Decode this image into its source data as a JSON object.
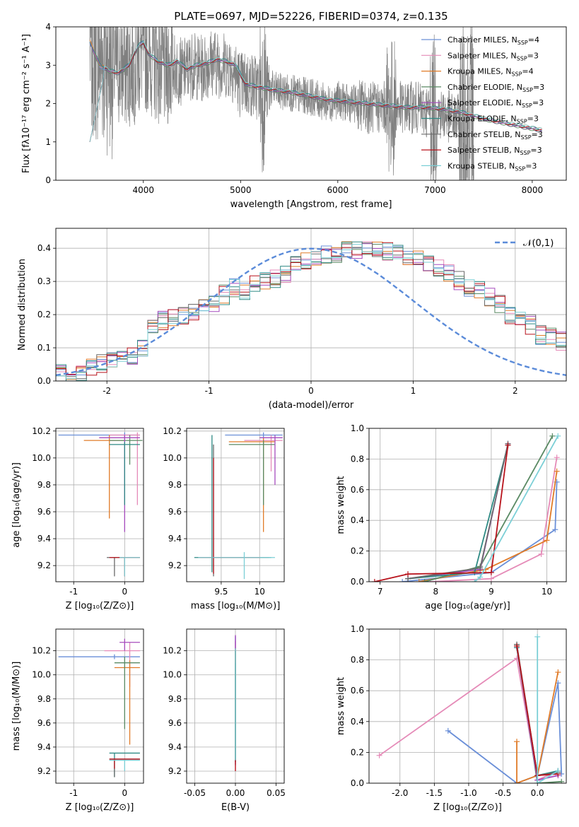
{
  "title": "PLATE=0697, MJD=52226, FIBERID=0374, z=0.135",
  "colors": [
    "#6a8fd8",
    "#e58bb8",
    "#e07b28",
    "#5a8a64",
    "#a64bbd",
    "#2e8a84",
    "#6a6a6a",
    "#b8121b",
    "#7bcfd6"
  ],
  "legend": [
    {
      "label": "Chabrier MILES, N",
      "sub": "SSP",
      "val": "=4"
    },
    {
      "label": "Salpeter MILES, N",
      "sub": "SSP",
      "val": "=3"
    },
    {
      "label": "Kroupa MILES, N",
      "sub": "SSP",
      "val": "=4"
    },
    {
      "label": "Chabrier ELODIE, N",
      "sub": "SSP",
      "val": "=3"
    },
    {
      "label": "Salpeter ELODIE, N",
      "sub": "SSP",
      "val": "=3"
    },
    {
      "label": "Kroupa ELODIE, N",
      "sub": "SSP",
      "val": "=3"
    },
    {
      "label": "Chabrier STELIB, N",
      "sub": "SSP",
      "val": "=3"
    },
    {
      "label": "Salpeter STELIB, N",
      "sub": "SSP",
      "val": "=3"
    },
    {
      "label": "Kroupa STELIB, N",
      "sub": "SSP",
      "val": "=3"
    }
  ],
  "chart_data": [
    {
      "id": "spectrum",
      "type": "line",
      "xlabel": "wavelength [Angstrom, rest frame]",
      "ylabel": "Flux [fλ10⁻¹⁷ erg cm⁻² s⁻¹ A⁻¹]",
      "xlim": [
        3100,
        8350
      ],
      "ylim": [
        0,
        4
      ],
      "xticks": [
        4000,
        5000,
        6000,
        7000,
        8000
      ],
      "yticks": [
        0,
        1,
        2,
        3,
        4
      ],
      "grid": false,
      "data_series": {
        "name": "",
        "x": [
          3450,
          3600,
          3700,
          3800,
          3900,
          4000,
          4100,
          4200,
          4300,
          4400,
          4500,
          4600,
          4700,
          4800,
          4900,
          5000,
          5100,
          5200,
          5300,
          5400,
          5500,
          5600,
          5700,
          5800,
          5900,
          6000,
          6100,
          6200,
          6300,
          6400,
          6500,
          6600,
          6700,
          6800,
          6900,
          7000,
          7100,
          7200,
          7300,
          7400
        ],
        "y": [
          3.6,
          3.2,
          3.0,
          2.9,
          3.0,
          3.4,
          3.2,
          2.9,
          3.0,
          2.8,
          3.0,
          2.9,
          3.1,
          3.0,
          3.0,
          2.5,
          2.5,
          2.4,
          2.4,
          2.3,
          2.3,
          2.2,
          2.2,
          2.1,
          2.0,
          2.1,
          2.0,
          2.0,
          1.9,
          1.9,
          1.9,
          1.9,
          1.9,
          1.9,
          1.8,
          1.8,
          1.7,
          1.6,
          1.5,
          1.5
        ]
      },
      "model_x": [
        3450,
        3550,
        3650,
        3750,
        3850,
        3950,
        4000,
        4050,
        4150,
        4250,
        4350,
        4450,
        4550,
        4650,
        4750,
        4850,
        4950,
        5050,
        5150,
        5250,
        5350,
        5500,
        5700,
        5900,
        6100,
        6300,
        6500,
        6700,
        6900,
        7100,
        7300,
        7500,
        7700,
        7900,
        8100
      ],
      "model_y": [
        3.6,
        3.0,
        2.85,
        2.8,
        3.0,
        3.5,
        3.6,
        3.3,
        3.1,
        3.0,
        3.1,
        2.9,
        3.0,
        3.05,
        3.15,
        3.1,
        3.0,
        2.5,
        2.45,
        2.4,
        2.35,
        2.3,
        2.2,
        2.1,
        2.05,
        2.0,
        1.95,
        1.9,
        1.9,
        1.85,
        1.75,
        1.6,
        1.5,
        1.4,
        1.3
      ],
      "legend_position": "upper right"
    },
    {
      "id": "residuals",
      "type": "histogram",
      "xlabel": "(data-model)/error",
      "ylabel": "Normed distribution",
      "xlim": [
        -2.5,
        2.5
      ],
      "ylim": [
        0,
        0.46
      ],
      "xticks": [
        -2,
        -1,
        0,
        1,
        2
      ],
      "yticks": [
        0.0,
        0.1,
        0.2,
        0.3,
        0.4
      ],
      "grid": true,
      "bin_start": -2.5,
      "bin_width": 0.1,
      "base_values": [
        0.03,
        0.02,
        0.03,
        0.04,
        0.05,
        0.07,
        0.07,
        0.07,
        0.1,
        0.17,
        0.18,
        0.19,
        0.2,
        0.21,
        0.22,
        0.23,
        0.26,
        0.28,
        0.27,
        0.29,
        0.3,
        0.31,
        0.32,
        0.35,
        0.36,
        0.37,
        0.38,
        0.38,
        0.39,
        0.39,
        0.4,
        0.4,
        0.39,
        0.39,
        0.38,
        0.37,
        0.36,
        0.34,
        0.33,
        0.3,
        0.28,
        0.27,
        0.25,
        0.23,
        0.2,
        0.19,
        0.17,
        0.14,
        0.13,
        0.12,
        0.1,
        0.1,
        0.09,
        0.08,
        0.06,
        0.05,
        0.05,
        0.04,
        0.04,
        0.03
      ],
      "reference_curve": {
        "name": "𝒩(0,1)",
        "style": "dashed",
        "color": "#5b8bd9"
      },
      "legend_position": "upper right"
    },
    {
      "id": "age-vs-Z",
      "type": "scatter",
      "xlabel": "Z [log₁₀(Z/Z⊙)]",
      "ylabel": "age  [log₁₀(age/yr)]",
      "xlim": [
        -1.35,
        0.37
      ],
      "ylim": [
        9.08,
        10.22
      ],
      "xticks": [
        -1,
        0
      ],
      "yticks": [
        9.2,
        9.4,
        9.6,
        9.8,
        10.0,
        10.2
      ],
      "grid": true
    },
    {
      "id": "age-vs-mass",
      "type": "scatter",
      "xlabel": "mass [log₁₀(M/M⊙)]",
      "ylabel": "",
      "xlim": [
        9.05,
        10.32
      ],
      "ylim": [
        9.08,
        10.22
      ],
      "xticks": [
        9.5,
        10.0
      ],
      "yticks": [
        9.2,
        9.4,
        9.6,
        9.8,
        10.0,
        10.2
      ],
      "grid": true
    },
    {
      "id": "weight-vs-age",
      "type": "line",
      "xlabel": "age  [log₁₀(age/yr)]",
      "ylabel": "mass weight",
      "xlim": [
        6.8,
        10.35
      ],
      "ylim": [
        0,
        1.0
      ],
      "xticks": [
        7,
        8,
        9,
        10
      ],
      "yticks": [
        0.0,
        0.2,
        0.4,
        0.6,
        0.8,
        1.0
      ],
      "grid": true,
      "series": [
        {
          "x": [
            7.4,
            9.0,
            10.15,
            10.18
          ],
          "y": [
            0.0,
            0.06,
            0.34,
            0.65
          ]
        },
        {
          "x": [
            7.9,
            9.0,
            9.9,
            10.18
          ],
          "y": [
            0.0,
            0.02,
            0.18,
            0.81
          ]
        },
        {
          "x": [
            7.7,
            8.9,
            10.0,
            10.18
          ],
          "y": [
            0.0,
            0.08,
            0.27,
            0.72
          ]
        },
        {
          "x": [
            7.8,
            8.8,
            10.1
          ],
          "y": [
            0.0,
            0.1,
            0.95
          ]
        },
        {
          "x": [
            7.5,
            8.8,
            9.3
          ],
          "y": [
            0.02,
            0.08,
            0.9
          ]
        },
        {
          "x": [
            7.5,
            8.7,
            9.3
          ],
          "y": [
            0.02,
            0.06,
            0.89
          ]
        },
        {
          "x": [
            7.5,
            8.8,
            9.3
          ],
          "y": [
            0.02,
            0.09,
            0.9
          ]
        },
        {
          "x": [
            6.9,
            7.5,
            9.0,
            9.3
          ],
          "y": [
            0.0,
            0.05,
            0.06,
            0.89
          ]
        },
        {
          "x": [
            8.7,
            8.8,
            10.2
          ],
          "y": [
            0.0,
            0.03,
            0.95
          ]
        }
      ]
    },
    {
      "id": "mass-vs-Z",
      "type": "scatter",
      "xlabel": "Z [log₁₀(Z/Z⊙)]",
      "ylabel": "mass [log₁₀(M/M⊙)]",
      "xlim": [
        -1.35,
        0.37
      ],
      "ylim": [
        9.1,
        10.38
      ],
      "xticks": [
        -1,
        0
      ],
      "yticks": [
        9.2,
        9.4,
        9.6,
        9.8,
        10.0,
        10.2
      ],
      "grid": true
    },
    {
      "id": "mass-vs-EBV",
      "type": "scatter",
      "xlabel": "E(B-V)",
      "ylabel": "",
      "xlim": [
        -0.06,
        0.06
      ],
      "ylim": [
        9.1,
        10.38
      ],
      "xticks": [
        -0.05,
        0.0,
        0.05
      ],
      "yticks": [
        9.2,
        9.4,
        9.6,
        9.8,
        10.0,
        10.2
      ],
      "grid": true
    },
    {
      "id": "weight-vs-Z",
      "type": "line",
      "xlabel": "Z [log₁₀(Z/Z⊙)]",
      "ylabel": "mass weight",
      "xlim": [
        -2.45,
        0.42
      ],
      "ylim": [
        0,
        1.0
      ],
      "xticks": [
        -2.0,
        -1.5,
        -1.0,
        -0.5,
        0.0
      ],
      "yticks": [
        0.0,
        0.2,
        0.4,
        0.6,
        0.8,
        1.0
      ],
      "grid": true,
      "series": [
        {
          "x": [
            -1.3,
            -0.3,
            0.0,
            0.3,
            0.35
          ],
          "y": [
            0.34,
            0.0,
            0.05,
            0.65,
            0.06
          ]
        },
        {
          "x": [
            -2.3,
            -0.3,
            0.0,
            0.3
          ],
          "y": [
            0.18,
            0.81,
            0.02,
            0.08
          ]
        },
        {
          "x": [
            -0.3,
            -0.3,
            0.0,
            0.3
          ],
          "y": [
            0.27,
            0.0,
            0.05,
            0.72
          ]
        },
        {
          "x": [
            -0.3,
            0.0,
            0.35
          ],
          "y": [
            0.9,
            0.0,
            0.01
          ]
        },
        {
          "x": [
            -0.3,
            0.0,
            0.3
          ],
          "y": [
            0.88,
            0.02,
            0.05
          ]
        },
        {
          "x": [
            -0.3,
            0.0,
            0.3
          ],
          "y": [
            0.88,
            0.05,
            0.08
          ]
        },
        {
          "x": [
            -0.3,
            0.0,
            0.3
          ],
          "y": [
            0.9,
            0.05,
            0.07
          ]
        },
        {
          "x": [
            -0.3,
            0.0,
            0.3
          ],
          "y": [
            0.89,
            0.05,
            0.06
          ]
        },
        {
          "x": [
            0.0,
            0.0,
            0.3
          ],
          "y": [
            0.95,
            0.0,
            0.08
          ]
        }
      ]
    }
  ],
  "errorbars": {
    "age_Z": [
      [
        0.0,
        10.17,
        -1.3,
        0.3,
        10.15,
        10.19
      ],
      [
        0.25,
        10.17,
        -0.3,
        0.3,
        9.65,
        10.19
      ],
      [
        -0.3,
        10.13,
        -0.8,
        0.0,
        9.55,
        10.17
      ],
      [
        0.1,
        10.13,
        -0.3,
        0.35,
        9.95,
        10.17
      ],
      [
        0.0,
        10.15,
        -0.5,
        0.3,
        9.45,
        10.17
      ],
      [
        0.0,
        10.1,
        -0.3,
        0.3,
        9.65,
        10.12
      ],
      [
        -0.2,
        9.26,
        -0.35,
        0.3,
        9.12,
        9.26
      ],
      [
        0.0,
        9.26,
        -0.3,
        0.3,
        9.12,
        9.26
      ],
      [
        0.0,
        9.26,
        -0.1,
        0.3,
        9.12,
        9.26
      ]
    ],
    "age_mass": [
      [
        10.05,
        10.17,
        9.55,
        10.3,
        10.15,
        10.19
      ],
      [
        10.15,
        10.13,
        9.8,
        10.3,
        9.9,
        10.17
      ],
      [
        10.05,
        10.12,
        9.6,
        10.2,
        9.45,
        10.15
      ],
      [
        10.05,
        10.1,
        9.6,
        10.2,
        9.65,
        10.13
      ],
      [
        10.2,
        10.15,
        10.0,
        10.3,
        9.8,
        10.17
      ],
      [
        9.38,
        9.26,
        9.15,
        10.15,
        9.15,
        10.17
      ],
      [
        9.4,
        9.26,
        9.2,
        10.12,
        9.12,
        10.1
      ],
      [
        9.4,
        9.26,
        9.22,
        10.0,
        9.14,
        10.0
      ],
      [
        9.8,
        9.26,
        9.2,
        10.2,
        9.1,
        9.3
      ]
    ],
    "mass_Z": [
      [
        -0.2,
        10.15,
        -1.3,
        0.3,
        10.13,
        10.17
      ],
      [
        0.1,
        10.2,
        -0.4,
        0.3,
        9.9,
        10.27
      ],
      [
        0.1,
        10.06,
        -0.2,
        0.3,
        9.42,
        10.12
      ],
      [
        0.0,
        10.1,
        -0.2,
        0.3,
        9.55,
        10.15
      ],
      [
        0.0,
        10.27,
        -0.1,
        0.3,
        10.2,
        10.3
      ],
      [
        -0.2,
        9.35,
        -0.3,
        0.3,
        9.15,
        9.35
      ],
      [
        -0.2,
        9.3,
        -0.3,
        0.3,
        9.15,
        9.3
      ],
      [
        -0.2,
        9.3,
        -0.3,
        0.3,
        9.22,
        9.3
      ],
      [
        0.0,
        9.29,
        -0.3,
        0.3,
        9.2,
        9.29
      ]
    ]
  }
}
